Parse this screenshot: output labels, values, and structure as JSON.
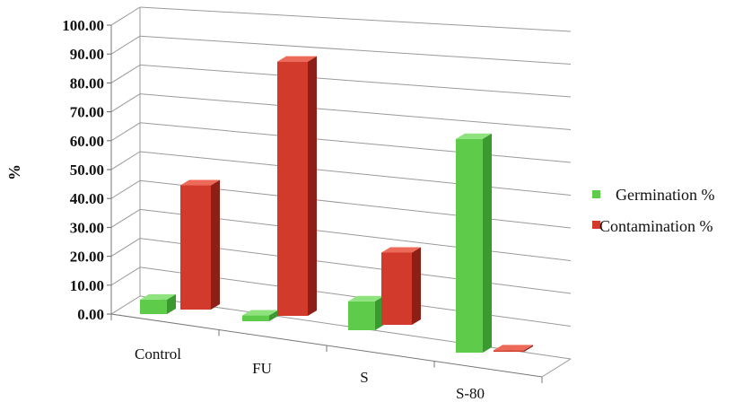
{
  "chart_data": {
    "type": "bar",
    "categories": [
      "Control",
      "FU",
      "S",
      "S-80"
    ],
    "series": [
      {
        "name": "Germination %",
        "values": [
          5.0,
          2.0,
          10.0,
          74.0
        ]
      },
      {
        "name": "Contamination %",
        "values": [
          43.0,
          88.0,
          25.0,
          0.5
        ]
      }
    ],
    "xlabel": "",
    "ylabel": "%",
    "ylim": [
      0,
      100
    ],
    "yticks": [
      "0.00",
      "10.00",
      "20.00",
      "30.00",
      "40.00",
      "50.00",
      "60.00",
      "70.00",
      "80.00",
      "90.00",
      "100.00"
    ],
    "grid": true,
    "legend_position": "right",
    "colors": {
      "germination_front": "#5ecb4b",
      "germination_top": "#8fe37f",
      "germination_side": "#3a9a30",
      "contamination_front": "#d23a2c",
      "contamination_top": "#ee6a58",
      "contamination_side": "#8e1f16",
      "grid": "#9a9a9a"
    }
  }
}
